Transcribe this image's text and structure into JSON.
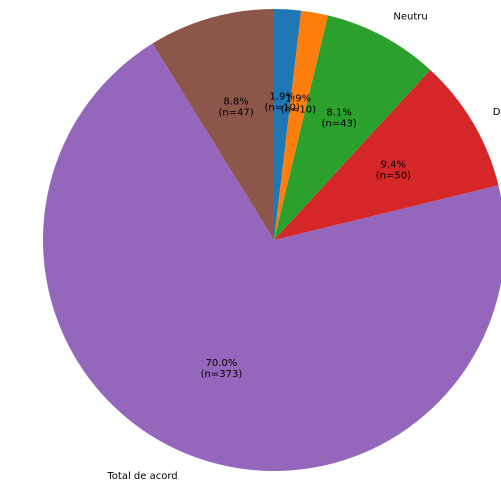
{
  "chart_data": {
    "type": "pie",
    "title": "",
    "start_angle_deg": 90,
    "direction": "counterclockwise",
    "slices": [
      {
        "label": "",
        "value": 47,
        "pct_label": "8.8%",
        "n_label": "(n=47)",
        "color": "#8c564b"
      },
      {
        "label": "Total de acord",
        "value": 373,
        "pct_label": "70.0%",
        "n_label": "(n=373)",
        "color": "#9467bd"
      },
      {
        "label": "De acord",
        "value": 50,
        "pct_label": "9.4%",
        "n_label": "(n=50)",
        "color": "#d62728"
      },
      {
        "label": "Neutru",
        "value": 43,
        "pct_label": "8.1%",
        "n_label": "(n=43)",
        "color": "#2ca02c"
      },
      {
        "label": "",
        "value": 10,
        "pct_label": "1.9%",
        "n_label": "(n=10)",
        "color": "#ff7f0e"
      },
      {
        "label": "",
        "value": 10,
        "pct_label": "1.9%",
        "n_label": "(n=10)",
        "color": "#1f77b4"
      }
    ]
  }
}
